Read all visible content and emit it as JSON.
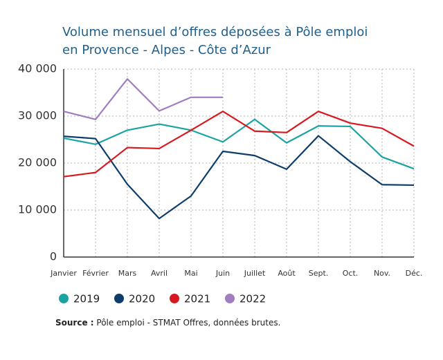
{
  "chart_data": {
    "type": "line",
    "title": [
      "Volume mensuel d’offres déposées à Pôle emploi",
      "en Provence - Alpes - Côte d’Azur"
    ],
    "categories": [
      "Janvier",
      "Février",
      "Mars",
      "Avril",
      "Mai",
      "Juin",
      "Juillet",
      "Août",
      "Sept.",
      "Oct.",
      "Nov.",
      "Déc."
    ],
    "series": [
      {
        "name": "2019",
        "color": "#1aa3a3",
        "values": [
          25300,
          24000,
          27000,
          28300,
          27000,
          24500,
          29300,
          24300,
          27900,
          27800,
          21300,
          18800
        ]
      },
      {
        "name": "2020",
        "color": "#0d3d6b",
        "values": [
          25700,
          25200,
          15500,
          8200,
          13000,
          22500,
          21600,
          18700,
          25800,
          20300,
          15400,
          15300
        ]
      },
      {
        "name": "2021",
        "color": "#d7191f",
        "values": [
          17100,
          18000,
          23300,
          23100,
          27000,
          31000,
          26800,
          26500,
          31000,
          28500,
          27400,
          23600
        ]
      },
      {
        "name": "2022",
        "color": "#a07cc0",
        "values": [
          31000,
          29300,
          37900,
          31100,
          34000,
          34000,
          null,
          null,
          null,
          null,
          null,
          null
        ]
      }
    ],
    "ylim": [
      0,
      40000
    ],
    "yticks": [
      0,
      {
        "value": 10000,
        "label": "10 000"
      },
      {
        "value": 20000,
        "label": "20 000"
      },
      {
        "value": 30000,
        "label": "30 000"
      },
      {
        "value": 40000,
        "label": "40 000"
      }
    ],
    "grid": true,
    "source_label": "Source :",
    "source": "Pôle emploi - STMAT Offres, données brutes."
  }
}
